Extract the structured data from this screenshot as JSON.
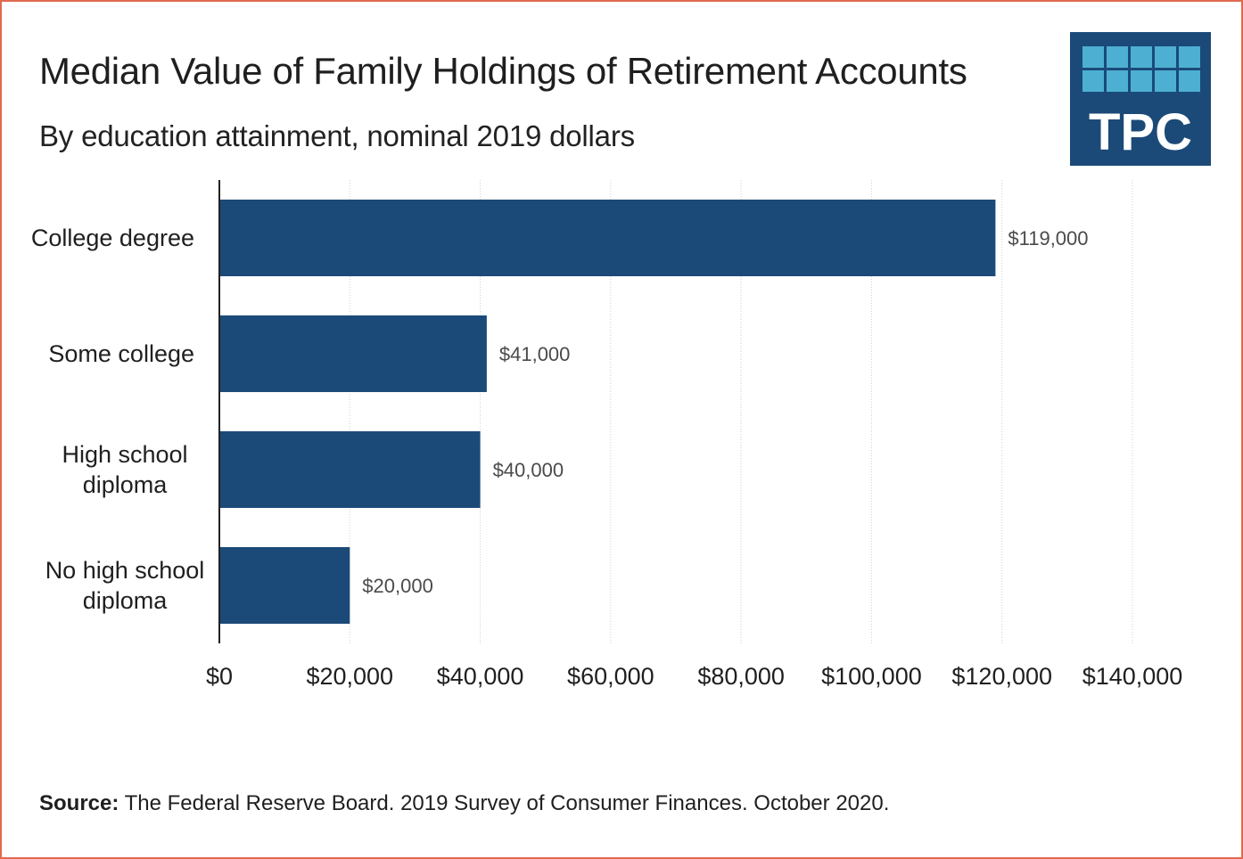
{
  "title": "Median Value of Family Holdings of Retirement Accounts",
  "subtitle": "By education attainment, nominal 2019 dollars",
  "logo": {
    "text": "TPC",
    "dark_color": "#1b4a78",
    "light_color": "#4db0d3"
  },
  "source": {
    "label": "Source:",
    "text": " The Federal Reserve Board. 2019 Survey of Consumer Finances. October 2020."
  },
  "colors": {
    "bar": "#1b4a78",
    "border": "#e06a50",
    "grid": "#cfcfcf"
  },
  "chart_data": {
    "type": "bar",
    "orientation": "horizontal",
    "categories": [
      [
        "College degree"
      ],
      [
        "Some college"
      ],
      [
        "High school",
        "diploma"
      ],
      [
        "No high school",
        "diploma"
      ]
    ],
    "values": [
      119000,
      41000,
      40000,
      20000
    ],
    "value_labels": [
      "$119,000",
      "$41,000",
      "$40,000",
      "$20,000"
    ],
    "xlim": [
      0,
      140000
    ],
    "xticks": [
      0,
      20000,
      40000,
      60000,
      80000,
      100000,
      120000,
      140000
    ],
    "xtick_labels": [
      "$0",
      "$20,000",
      "$40,000",
      "$60,000",
      "$80,000",
      "$100,000",
      "$120,000",
      "$140,000"
    ],
    "grid": true,
    "legend": "none"
  }
}
